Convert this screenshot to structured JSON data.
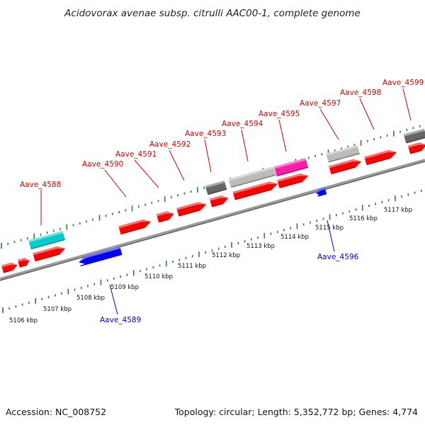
{
  "title": "Acidovorax avenae subsp. citrulli AAC00-1, complete genome",
  "footer": {
    "accession": "Accession: NC_008752",
    "summary": "Topology: circular; Length: 5,352,772 bp; Genes: 4,774"
  },
  "colors": {
    "forward_gene": "#ff0000",
    "reverse_gene": "#0000ff",
    "forward_label": "#cc0000",
    "reverse_label": "#0000cc",
    "tick": "#2e7d32",
    "backbone": "#888888"
  },
  "scale": {
    "unit": "kbp",
    "labels": [
      "5106 kbp",
      "5107 kbp",
      "5108 kbp",
      "5109 kbp",
      "5110 kbp",
      "5111 kbp",
      "5112 kbp",
      "5113 kbp",
      "5114 kbp",
      "5115 kbp",
      "5116 kbp",
      "5117 kbp"
    ]
  },
  "gene_labels": {
    "forward": [
      "Aave_4588",
      "Aave_4590",
      "Aave_4591",
      "Aave_4592",
      "Aave_4593",
      "Aave_4594",
      "Aave_4595",
      "Aave_4597",
      "Aave_4598",
      "Aave_4599"
    ],
    "reverse": [
      "Aave_4589",
      "Aave_4596"
    ]
  },
  "features": [
    {
      "kind": "gene",
      "strand": "+",
      "color": "#ff0000"
    },
    {
      "kind": "gene",
      "strand": "+",
      "color": "#ff0000"
    },
    {
      "kind": "gene",
      "strand": "+",
      "color": "#ff0000"
    },
    {
      "kind": "other",
      "strand": "+",
      "color": "#00cccc"
    },
    {
      "kind": "gene",
      "strand": "-",
      "color": "#0000ff"
    },
    {
      "kind": "gene",
      "strand": "+",
      "color": "#ff0000"
    },
    {
      "kind": "gene",
      "strand": "+",
      "color": "#ff0000"
    },
    {
      "kind": "gene",
      "strand": "+",
      "color": "#ff0000"
    },
    {
      "kind": "gene",
      "strand": "+",
      "color": "#ff0000"
    },
    {
      "kind": "other",
      "strand": "+",
      "color": "#666666"
    },
    {
      "kind": "gene",
      "strand": "+",
      "color": "#ff0000"
    },
    {
      "kind": "other",
      "strand": "+",
      "color": "#bbbbbb"
    },
    {
      "kind": "gene",
      "strand": "+",
      "color": "#ff0000"
    },
    {
      "kind": "other",
      "strand": "+",
      "color": "#ff1ca8"
    },
    {
      "kind": "gene",
      "strand": "-",
      "color": "#0000ff"
    },
    {
      "kind": "other",
      "strand": "+",
      "color": "#bbbbbb"
    },
    {
      "kind": "gene",
      "strand": "+",
      "color": "#ff0000"
    },
    {
      "kind": "gene",
      "strand": "+",
      "color": "#ff0000"
    },
    {
      "kind": "other",
      "strand": "+",
      "color": "#666666"
    },
    {
      "kind": "gene",
      "strand": "+",
      "color": "#ff0000"
    }
  ]
}
